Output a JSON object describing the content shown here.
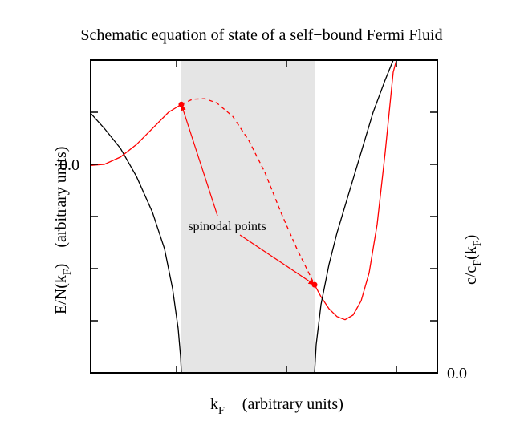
{
  "chart_data": {
    "type": "line",
    "title": "Schematic equation of state of a self−bound Fermi Fluid",
    "xlabel": [
      "k",
      "F"
    ],
    "xlabel_units": "(arbitrary units)",
    "ylabel": [
      "E/N(k",
      "F",
      ")"
    ],
    "ylabel_units": "(arbitrary units)",
    "y2label": [
      "c/c",
      "F",
      "(k",
      "F",
      ")"
    ],
    "xlim": [
      0,
      4.32
    ],
    "ylim": [
      -4,
      2
    ],
    "y2lim": [
      0,
      6
    ],
    "xticks": [
      1.07,
      2.44,
      3.81
    ],
    "yticks": [
      {
        "value": 0,
        "label": "0.0"
      }
    ],
    "y_minor_ticks": [
      -3,
      -2,
      -1,
      1
    ],
    "y2ticks": [
      {
        "value": 0,
        "label": "0.0"
      }
    ],
    "y2_minor_ticks": [
      1,
      2,
      3,
      4,
      5
    ],
    "shaded_x": [
      1.13,
      2.79
    ],
    "shade_color": "#e5e5e5",
    "series": [
      {
        "color": "#ff0000",
        "style": "solid",
        "axis": "y",
        "x": [
          0,
          0.17,
          0.37,
          0.57,
          0.77,
          0.97,
          1.13
        ],
        "values": [
          -0.02,
          0,
          0.14,
          0.38,
          0.69,
          1.0,
          1.15
        ]
      },
      {
        "color": "#ff0000",
        "style": "dashed",
        "axis": "y",
        "x": [
          1.13,
          1.27,
          1.42,
          1.57,
          1.77,
          1.97,
          2.17,
          2.37,
          2.57,
          2.79
        ],
        "values": [
          1.15,
          1.25,
          1.26,
          1.18,
          0.92,
          0.46,
          -0.15,
          -0.92,
          -1.62,
          -2.31
        ]
      },
      {
        "color": "#ff0000",
        "style": "solid",
        "axis": "y",
        "x": [
          2.79,
          2.87,
          2.97,
          3.07,
          3.17,
          3.27,
          3.37,
          3.47,
          3.57,
          3.67,
          3.77,
          3.81
        ],
        "values": [
          -2.31,
          -2.54,
          -2.77,
          -2.92,
          -2.98,
          -2.89,
          -2.62,
          -2.08,
          -1.15,
          0.23,
          1.77,
          2.0
        ]
      },
      {
        "color": "#000000",
        "style": "solid",
        "axis": "y2",
        "x": [
          0,
          0.17,
          0.37,
          0.57,
          0.77,
          0.92,
          1.02,
          1.09,
          1.12,
          1.13,
          null,
          2.79,
          2.81,
          2.87,
          2.97,
          3.07,
          3.22,
          3.37,
          3.52,
          3.67,
          3.77
        ],
        "values": [
          4.98,
          4.69,
          4.31,
          3.77,
          3.08,
          2.38,
          1.62,
          0.85,
          0.31,
          0,
          null,
          0,
          0.54,
          1.31,
          2.08,
          2.69,
          3.46,
          4.23,
          5.0,
          5.62,
          6.0
        ]
      }
    ],
    "markers": {
      "color": "#ff0000",
      "x": [
        1.13,
        2.79
      ],
      "values": [
        1.15,
        -2.31
      ]
    },
    "annotation": "spinodal points"
  }
}
